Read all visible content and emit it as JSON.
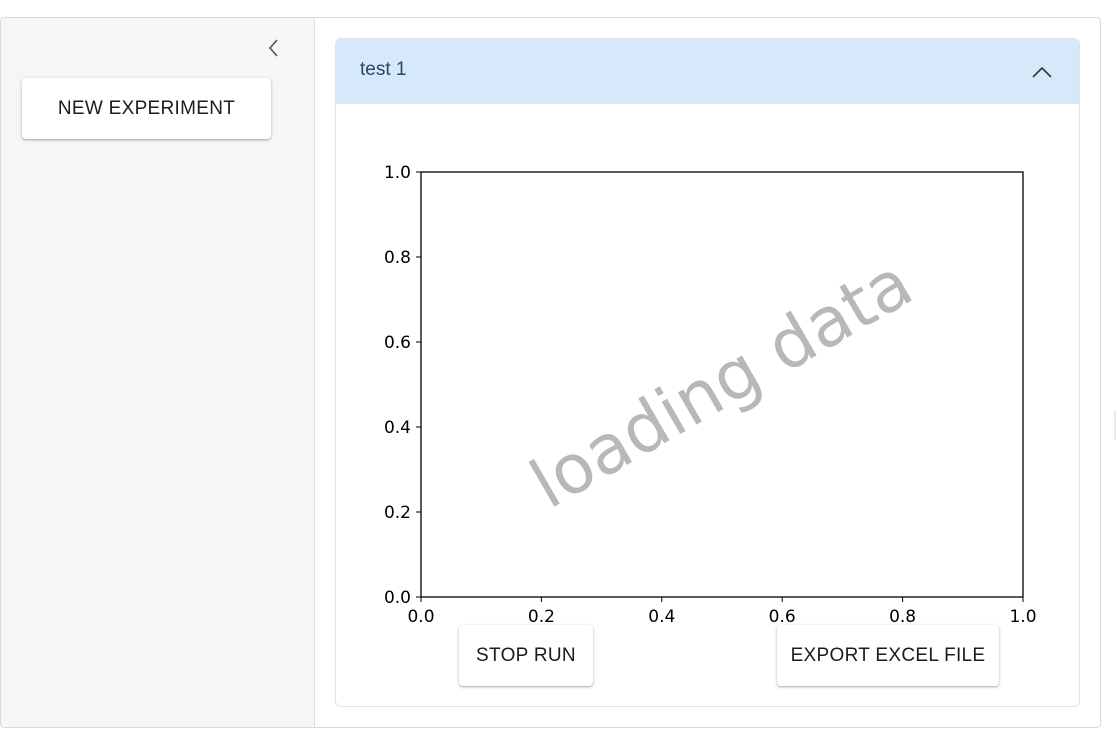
{
  "sidebar": {
    "new_experiment_label": "NEW EXPERIMENT"
  },
  "panel": {
    "title": "test 1",
    "stop_label": "STOP RUN",
    "export_label": "EXPORT EXCEL FILE"
  },
  "chart_data": {
    "type": "line",
    "title": "",
    "xlabel": "",
    "ylabel": "",
    "xlim": [
      0.0,
      1.0
    ],
    "ylim": [
      0.0,
      1.0
    ],
    "x_ticks": [
      "0.0",
      "0.2",
      "0.4",
      "0.6",
      "0.8",
      "1.0"
    ],
    "y_ticks": [
      "0.0",
      "0.2",
      "0.4",
      "0.6",
      "0.8",
      "1.0"
    ],
    "series": [],
    "annotation": "loading data",
    "grid": false
  },
  "colors": {
    "sidebar_bg": "#f6f6f6",
    "header_bg": "#d6e9fb",
    "header_text": "#2b4766",
    "watermark": "#b8b8b8"
  }
}
